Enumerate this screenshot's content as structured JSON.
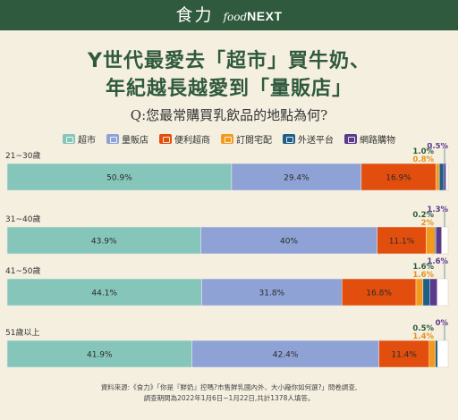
{
  "header": {
    "brand_zh": "食力",
    "brand_food": "food",
    "brand_next": "NEXT"
  },
  "title_line1": "Y世代最愛去「超市」買牛奶、",
  "title_line2": "年紀越長越愛到「量販店」",
  "question": "Q:您最常購買乳飲品的地點為何?",
  "colors": {
    "background": "#f5efe0",
    "brand_green": "#2f5a3d",
    "label_green": "#2f5a3d",
    "label_orange": "#e89218",
    "label_purple": "#5b3a8c"
  },
  "legend": [
    {
      "label": "超市",
      "color": "#86c5b9",
      "icon": "store-icon"
    },
    {
      "label": "量販店",
      "color": "#8fa2d6",
      "icon": "warehouse-icon"
    },
    {
      "label": "便利超商",
      "color": "#e24e0e",
      "icon": "convenience-store-icon"
    },
    {
      "label": "訂閱宅配",
      "color": "#f39a1e",
      "icon": "delivery-box-icon"
    },
    {
      "label": "外送平台",
      "color": "#1f5e87",
      "icon": "delivery-scooter-icon"
    },
    {
      "label": "網路購物",
      "color": "#5b3a8c",
      "icon": "shopping-cart-icon"
    }
  ],
  "chart_data": {
    "type": "bar",
    "orientation": "horizontal-stacked",
    "categories": [
      "21~30歲",
      "31~40歲",
      "41~50歲",
      "51歲以上"
    ],
    "series": [
      {
        "name": "超市",
        "values": [
          50.9,
          43.9,
          44.1,
          41.9
        ]
      },
      {
        "name": "量販店",
        "values": [
          29.4,
          40,
          31.8,
          42.4
        ]
      },
      {
        "name": "便利超商",
        "values": [
          16.9,
          11.1,
          16.8,
          11.4
        ]
      },
      {
        "name": "訂閱宅配",
        "values": [
          0.8,
          2,
          1.6,
          1.4
        ]
      },
      {
        "name": "外送平台",
        "values": [
          1.0,
          0.2,
          1.6,
          0.5
        ]
      },
      {
        "name": "網路購物",
        "values": [
          0.5,
          1.3,
          1.6,
          0
        ]
      }
    ],
    "labels": [
      [
        "50.9%",
        "29.4%",
        "16.9%",
        "0.8%",
        "1.0%",
        "0.5%"
      ],
      [
        "43.9%",
        "40%",
        "11.1%",
        "2%",
        "0.2%",
        "1.3%"
      ],
      [
        "44.1%",
        "31.8%",
        "16.8%",
        "1.6%",
        "1.6%",
        "1.6%"
      ],
      [
        "41.9%",
        "42.4%",
        "11.4%",
        "1.4%",
        "0.5%",
        "0%"
      ]
    ],
    "xlim": [
      0,
      100
    ],
    "unit": "%"
  },
  "source_line1": "資料來源:《食力》「你是『鮮奶』控嗎?市售鮮乳國內外、大小廠你如何選?」問卷調查,",
  "source_line2": "調查期間為2022年1月6日~1月22日,共計1378人填答。"
}
